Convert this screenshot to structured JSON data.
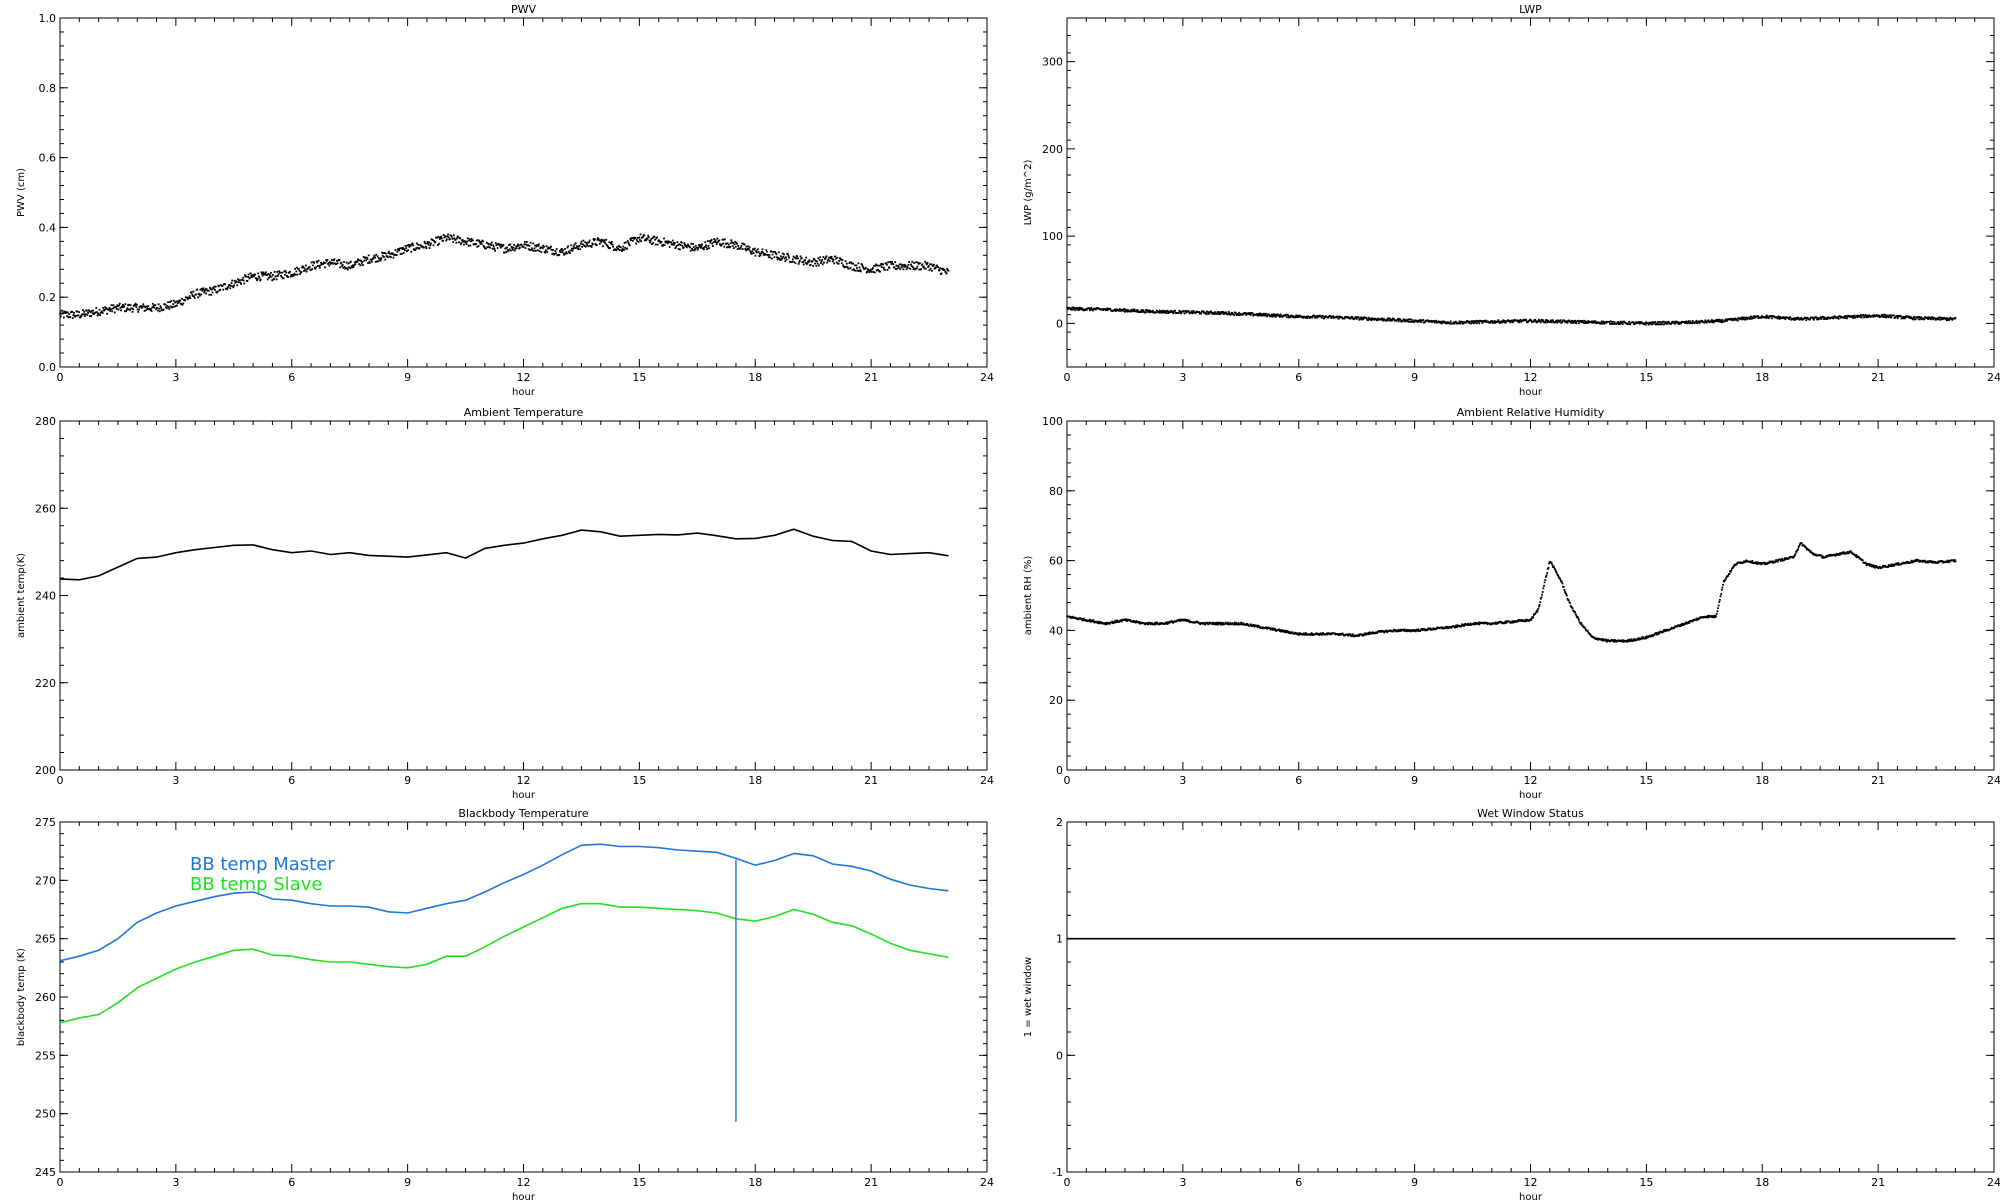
{
  "chart_data": [
    {
      "type": "scatter",
      "title": "PWV",
      "xlabel": "hour",
      "ylabel": "PWV (cm)",
      "xlim": [
        0,
        24
      ],
      "ylim": [
        0.0,
        1.0
      ],
      "xticks": [
        0,
        3,
        6,
        9,
        12,
        15,
        18,
        21,
        24
      ],
      "yticks": [
        0.0,
        0.2,
        0.4,
        0.6,
        0.8,
        1.0
      ],
      "ytick_labels": [
        "0.0",
        "0.2",
        "0.4",
        "0.6",
        "0.8",
        "1.0"
      ],
      "noise": 0.012,
      "series": [
        {
          "color": "#000000",
          "x": [
            0,
            0.5,
            1,
            1.5,
            2,
            2.5,
            3,
            3.5,
            4,
            4.5,
            5,
            5.5,
            6,
            6.5,
            7,
            7.5,
            8,
            8.5,
            9,
            9.5,
            10,
            10.5,
            11,
            11.5,
            12,
            12.5,
            13,
            13.5,
            14,
            14.5,
            15,
            15.5,
            16,
            16.5,
            17,
            17.5,
            18,
            18.5,
            19,
            19.5,
            20,
            20.5,
            21,
            21.5,
            22,
            22.5,
            23
          ],
          "y": [
            0.15,
            0.15,
            0.16,
            0.17,
            0.17,
            0.17,
            0.18,
            0.21,
            0.22,
            0.24,
            0.26,
            0.26,
            0.27,
            0.29,
            0.3,
            0.29,
            0.31,
            0.32,
            0.34,
            0.35,
            0.37,
            0.36,
            0.35,
            0.34,
            0.35,
            0.34,
            0.33,
            0.35,
            0.36,
            0.34,
            0.37,
            0.36,
            0.35,
            0.34,
            0.36,
            0.35,
            0.33,
            0.32,
            0.31,
            0.3,
            0.31,
            0.29,
            0.28,
            0.29,
            0.29,
            0.29,
            0.27
          ]
        }
      ]
    },
    {
      "type": "scatter",
      "title": "LWP",
      "xlabel": "hour",
      "ylabel": "LWP (g/m^2)",
      "xlim": [
        0,
        24
      ],
      "ylim": [
        -50,
        350
      ],
      "xticks": [
        0,
        3,
        6,
        9,
        12,
        15,
        18,
        21,
        24
      ],
      "yticks": [
        0,
        100,
        200,
        300
      ],
      "noise": 1.6,
      "series": [
        {
          "color": "#000000",
          "x": [
            0,
            1,
            2,
            3,
            4,
            5,
            6,
            7,
            8,
            9,
            10,
            11,
            12,
            13,
            14,
            15,
            16,
            17,
            18,
            19,
            20,
            21,
            22,
            23
          ],
          "y": [
            17,
            16,
            14,
            13,
            12,
            10,
            8,
            7,
            5,
            3,
            1,
            2,
            3,
            2,
            1,
            0,
            1,
            3,
            8,
            5,
            7,
            9,
            6,
            5
          ]
        }
      ]
    },
    {
      "type": "line",
      "title": "Ambient Temperature",
      "xlabel": "hour",
      "ylabel": "ambient temp(K)",
      "xlim": [
        0,
        24
      ],
      "ylim": [
        200,
        280
      ],
      "xticks": [
        0,
        3,
        6,
        9,
        12,
        15,
        18,
        21,
        24
      ],
      "yticks": [
        200,
        220,
        240,
        260,
        280
      ],
      "series": [
        {
          "color": "#000000",
          "x": [
            0,
            0.5,
            1,
            1.5,
            2,
            2.5,
            3,
            3.5,
            4,
            4.5,
            5,
            5.5,
            6,
            6.5,
            7,
            7.5,
            8,
            8.5,
            9,
            9.5,
            10,
            10.5,
            11,
            11.5,
            12,
            12.5,
            13,
            13.5,
            14,
            14.5,
            15,
            15.5,
            16,
            16.5,
            17,
            17.5,
            18,
            18.5,
            19,
            19.5,
            20,
            20.5,
            21,
            21.5,
            22,
            22.5,
            23
          ],
          "y": [
            243.8,
            243.6,
            244.5,
            246.5,
            248.5,
            248.8,
            249.8,
            250.5,
            251,
            251.5,
            251.6,
            250.5,
            249.8,
            250.2,
            249.4,
            249.8,
            249.2,
            249,
            248.8,
            249.3,
            249.8,
            248.6,
            250.8,
            251.5,
            252,
            253,
            253.8,
            255,
            254.6,
            253.6,
            253.8,
            254,
            253.9,
            254.3,
            253.7,
            253,
            253.1,
            253.8,
            255.2,
            253.6,
            252.6,
            252.4,
            250.2,
            249.4,
            249.6,
            249.8,
            249.1
          ]
        }
      ]
    },
    {
      "type": "scatter",
      "title": "Ambient Relative Humidity",
      "xlabel": "hour",
      "ylabel": "ambient RH (%)",
      "xlim": [
        0,
        24
      ],
      "ylim": [
        0,
        100
      ],
      "xticks": [
        0,
        3,
        6,
        9,
        12,
        15,
        18,
        21,
        24
      ],
      "yticks": [
        0,
        20,
        40,
        60,
        80,
        100
      ],
      "noise": 0.3,
      "series": [
        {
          "color": "#000000",
          "x": [
            0,
            0.5,
            1,
            1.5,
            2,
            2.5,
            3,
            3.5,
            4,
            4.5,
            5,
            5.5,
            6,
            6.5,
            7,
            7.5,
            8,
            8.5,
            9,
            9.5,
            10,
            10.5,
            11,
            11.5,
            12,
            12.2,
            12.5,
            12.8,
            13,
            13.3,
            13.6,
            14,
            14.5,
            15,
            15.5,
            16,
            16.5,
            16.8,
            17,
            17.3,
            17.6,
            18,
            18.4,
            18.8,
            19,
            19.3,
            19.6,
            20,
            20.3,
            20.7,
            21,
            21.5,
            22,
            22.5,
            23
          ],
          "y": [
            44,
            43,
            42,
            43,
            42,
            42,
            43,
            42,
            42,
            42,
            41,
            40,
            39,
            39,
            39,
            38.5,
            39.5,
            40,
            40,
            40.5,
            41,
            42,
            42,
            42.5,
            43,
            46,
            60,
            54,
            48,
            42,
            38,
            37,
            37,
            38,
            40,
            42,
            44,
            44,
            54,
            59,
            60,
            59,
            60,
            61,
            65,
            62,
            61,
            62,
            62.5,
            59,
            58,
            59,
            60,
            59.5,
            60
          ]
        }
      ]
    },
    {
      "type": "line",
      "title": "Blackbody Temperature",
      "xlabel": "hour",
      "ylabel": "blackbody temp (K)",
      "xlim": [
        0,
        24
      ],
      "ylim": [
        245,
        275
      ],
      "xticks": [
        0,
        3,
        6,
        9,
        12,
        15,
        18,
        21,
        24
      ],
      "yticks": [
        245,
        250,
        255,
        260,
        265,
        270,
        275
      ],
      "legend": [
        "BB temp Master",
        "BB temp Slave"
      ],
      "series": [
        {
          "name": "BB temp Master",
          "color": "#1e78dc",
          "x": [
            0,
            0.5,
            1,
            1.5,
            2,
            2.5,
            3,
            3.5,
            4,
            4.5,
            5,
            5.5,
            6,
            6.5,
            7,
            7.5,
            8,
            8.5,
            9,
            9.5,
            10,
            10.5,
            11,
            11.5,
            12,
            12.5,
            13,
            13.5,
            14,
            14.5,
            15,
            15.5,
            16,
            16.5,
            17,
            17.5,
            18,
            18.5,
            19,
            19.5,
            20,
            20.5,
            21,
            21.5,
            22,
            22.5,
            23
          ],
          "y": [
            263.1,
            263.5,
            264,
            265,
            266.4,
            267.2,
            267.8,
            268.2,
            268.6,
            268.9,
            269,
            268.4,
            268.3,
            268,
            267.8,
            267.8,
            267.7,
            267.3,
            267.2,
            267.6,
            268,
            268.3,
            269,
            269.8,
            270.5,
            271.3,
            272.2,
            273,
            273.1,
            272.9,
            272.9,
            272.8,
            272.6,
            272.5,
            272.4,
            271.9,
            271.3,
            271.7,
            272.3,
            272.1,
            271.4,
            271.2,
            270.8,
            270.1,
            269.6,
            269.3,
            269.1
          ]
        },
        {
          "name": "BB temp Slave",
          "color": "#22e022",
          "x": [
            0,
            0.5,
            1,
            1.5,
            2,
            2.5,
            3,
            3.5,
            4,
            4.5,
            5,
            5.5,
            6,
            6.5,
            7,
            7.5,
            8,
            8.5,
            9,
            9.5,
            10,
            10.5,
            11,
            11.5,
            12,
            12.5,
            13,
            13.5,
            14,
            14.5,
            15,
            15.5,
            16,
            16.5,
            17,
            17.5,
            18,
            18.5,
            19,
            19.5,
            20,
            20.5,
            21,
            21.5,
            22,
            22.5,
            23
          ],
          "y": [
            257.8,
            258.2,
            258.5,
            259.5,
            260.8,
            261.6,
            262.4,
            263,
            263.5,
            264,
            264.1,
            263.6,
            263.5,
            263.2,
            263,
            263,
            262.8,
            262.6,
            262.5,
            262.8,
            263.5,
            263.5,
            264.3,
            265.2,
            266,
            266.8,
            267.6,
            268,
            268,
            267.7,
            267.7,
            267.6,
            267.5,
            267.4,
            267.2,
            266.7,
            266.5,
            266.9,
            267.5,
            267.1,
            266.4,
            266.1,
            265.4,
            264.6,
            264,
            263.7,
            263.4
          ]
        }
      ],
      "spike": {
        "x": 17.5,
        "y_from": 249.3,
        "y_to": 271.8,
        "color": "#1e78dc"
      }
    },
    {
      "type": "line",
      "title": "Wet Window Status",
      "xlabel": "hour",
      "ylabel": "1 = wet window",
      "xlim": [
        0,
        24
      ],
      "ylim": [
        -1,
        2
      ],
      "xticks": [
        0,
        3,
        6,
        9,
        12,
        15,
        18,
        21,
        24
      ],
      "yticks": [
        -1,
        0,
        1,
        2
      ],
      "series": [
        {
          "color": "#000000",
          "x": [
            0,
            23
          ],
          "y": [
            1,
            1
          ]
        }
      ]
    }
  ]
}
